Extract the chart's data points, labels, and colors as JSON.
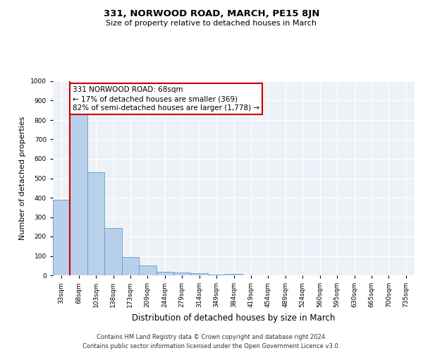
{
  "title": "331, NORWOOD ROAD, MARCH, PE15 8JN",
  "subtitle": "Size of property relative to detached houses in March",
  "xlabel": "Distribution of detached houses by size in March",
  "ylabel": "Number of detached properties",
  "bin_labels": [
    "33sqm",
    "68sqm",
    "103sqm",
    "138sqm",
    "173sqm",
    "209sqm",
    "244sqm",
    "279sqm",
    "314sqm",
    "349sqm",
    "384sqm",
    "419sqm",
    "454sqm",
    "489sqm",
    "524sqm",
    "560sqm",
    "595sqm",
    "630sqm",
    "665sqm",
    "700sqm",
    "735sqm"
  ],
  "bar_heights": [
    390,
    835,
    530,
    242,
    95,
    50,
    20,
    15,
    10,
    5,
    7,
    0,
    0,
    0,
    0,
    0,
    0,
    0,
    0,
    0,
    0
  ],
  "bar_color": "#b8d0ea",
  "bar_edge_color": "#6699cc",
  "highlight_color": "#cc0000",
  "ylim": [
    0,
    1000
  ],
  "yticks": [
    0,
    100,
    200,
    300,
    400,
    500,
    600,
    700,
    800,
    900,
    1000
  ],
  "annotation_line1": "331 NORWOOD ROAD: 68sqm",
  "annotation_line2": "← 17% of detached houses are smaller (369)",
  "annotation_line3": "82% of semi-detached houses are larger (1,778) →",
  "annotation_box_color": "#ffffff",
  "annotation_border_color": "#cc0000",
  "footer_line1": "Contains HM Land Registry data © Crown copyright and database right 2024.",
  "footer_line2": "Contains public sector information licensed under the Open Government Licence v3.0.",
  "background_color": "#eef2f8",
  "grid_color": "#ffffff",
  "fig_bg_color": "#ffffff",
  "prop_bar_index": 1,
  "title_fontsize": 9.5,
  "subtitle_fontsize": 8,
  "ylabel_fontsize": 8,
  "xlabel_fontsize": 8.5,
  "tick_fontsize": 6.5,
  "annot_fontsize": 7.5
}
